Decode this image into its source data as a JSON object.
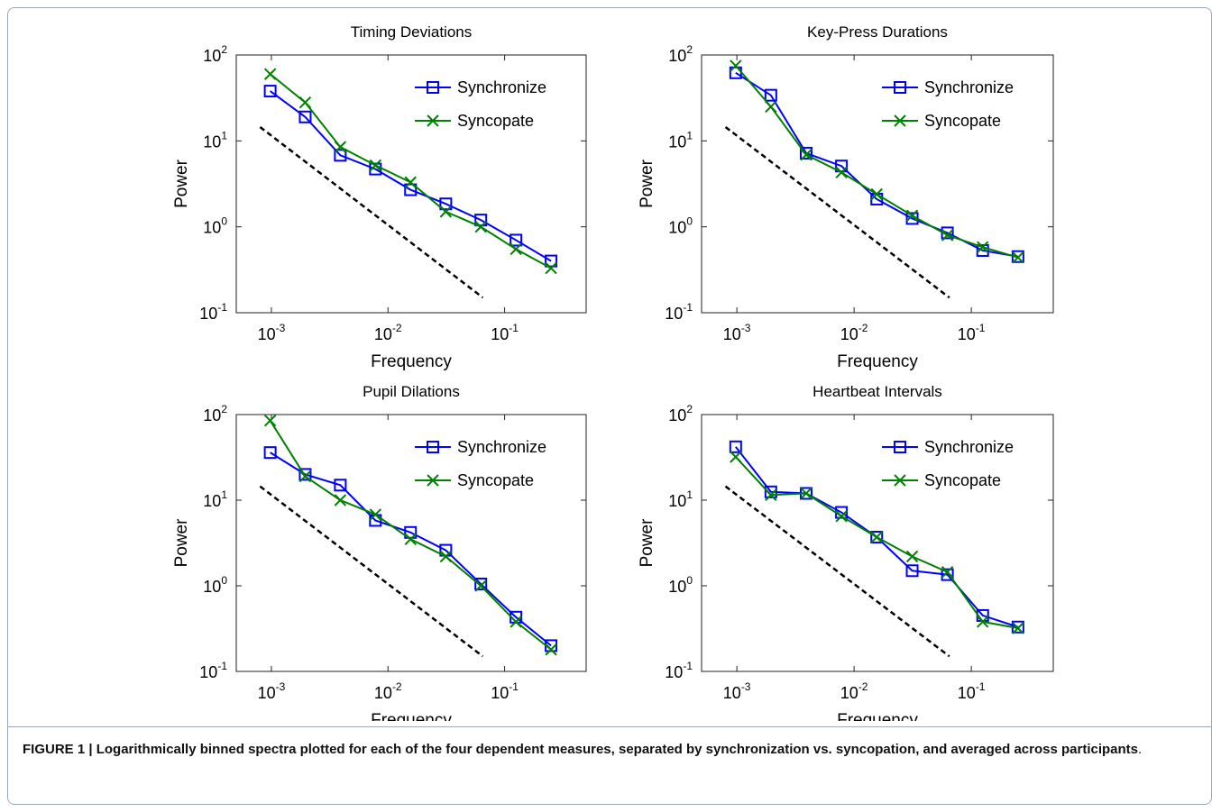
{
  "chart_data": [
    {
      "type": "line",
      "title": "Timing Deviations",
      "xlabel": "Frequency",
      "ylabel": "Power",
      "log_x": true,
      "log_y": true,
      "legend": "upper right",
      "x": [
        0.000977,
        0.00195,
        0.0039,
        0.0078,
        0.0156,
        0.0313,
        0.0625,
        0.125,
        0.25
      ],
      "series": [
        {
          "name": "Synchronize",
          "color": "#0000ff",
          "marker": "square",
          "values": [
            38,
            19,
            6.8,
            4.7,
            2.7,
            1.85,
            1.2,
            0.7,
            0.4
          ]
        },
        {
          "name": "Syncopate",
          "color": "#008000",
          "marker": "x",
          "values": [
            60,
            28,
            8.5,
            5.2,
            3.3,
            1.5,
            1.0,
            0.55,
            0.33
          ]
        }
      ],
      "reference_line": {
        "x": [
          0.0008,
          0.065
        ],
        "values": [
          14.5,
          0.15
        ],
        "color": "#000000",
        "dashed": true
      },
      "xlim": [
        0.0005,
        0.5
      ],
      "ylim": [
        0.1,
        100
      ],
      "xticks": [
        {
          "value": 0.001,
          "label": "10",
          "exponent": "-3"
        },
        {
          "value": 0.01,
          "label": "10",
          "exponent": "-2"
        },
        {
          "value": 0.1,
          "label": "10",
          "exponent": "-1"
        }
      ],
      "yticks": [
        {
          "value": 0.1,
          "label": "10",
          "exponent": "-1"
        },
        {
          "value": 1,
          "label": "10",
          "exponent": "0"
        },
        {
          "value": 10,
          "label": "10",
          "exponent": "1"
        },
        {
          "value": 100,
          "label": "10",
          "exponent": "2"
        }
      ]
    },
    {
      "type": "line",
      "title": "Key-Press Durations",
      "xlabel": "Frequency",
      "ylabel": "Power",
      "log_x": true,
      "log_y": true,
      "legend": "upper right",
      "x": [
        0.000977,
        0.00195,
        0.0039,
        0.0078,
        0.0156,
        0.0313,
        0.0625,
        0.125,
        0.25
      ],
      "series": [
        {
          "name": "Synchronize",
          "color": "#0000ff",
          "marker": "square",
          "values": [
            62,
            34,
            7.2,
            5.1,
            2.1,
            1.25,
            0.85,
            0.53,
            0.45
          ]
        },
        {
          "name": "Syncopate",
          "color": "#008000",
          "marker": "x",
          "values": [
            75,
            25,
            6.9,
            4.3,
            2.4,
            1.35,
            0.8,
            0.58,
            0.44
          ]
        }
      ],
      "reference_line": {
        "x": [
          0.0008,
          0.065
        ],
        "values": [
          14.5,
          0.15
        ],
        "color": "#000000",
        "dashed": true
      },
      "xlim": [
        0.0005,
        0.5
      ],
      "ylim": [
        0.1,
        100
      ],
      "xticks": [
        {
          "value": 0.001,
          "label": "10",
          "exponent": "-3"
        },
        {
          "value": 0.01,
          "label": "10",
          "exponent": "-2"
        },
        {
          "value": 0.1,
          "label": "10",
          "exponent": "-1"
        }
      ],
      "yticks": [
        {
          "value": 0.1,
          "label": "10",
          "exponent": "-1"
        },
        {
          "value": 1,
          "label": "10",
          "exponent": "0"
        },
        {
          "value": 10,
          "label": "10",
          "exponent": "1"
        },
        {
          "value": 100,
          "label": "10",
          "exponent": "2"
        }
      ]
    },
    {
      "type": "line",
      "title": "Pupil Dilations",
      "xlabel": "Frequency",
      "ylabel": "Power",
      "log_x": true,
      "log_y": true,
      "legend": "upper right",
      "x": [
        0.000977,
        0.00195,
        0.0039,
        0.0078,
        0.0156,
        0.0313,
        0.0625,
        0.125,
        0.25
      ],
      "series": [
        {
          "name": "Synchronize",
          "color": "#0000ff",
          "marker": "square",
          "values": [
            36,
            20,
            15,
            5.8,
            4.2,
            2.6,
            1.05,
            0.43,
            0.2
          ]
        },
        {
          "name": "Syncopate",
          "color": "#008000",
          "marker": "x",
          "values": [
            85,
            19,
            10,
            6.8,
            3.5,
            2.2,
            1.0,
            0.38,
            0.18
          ]
        }
      ],
      "reference_line": {
        "x": [
          0.0008,
          0.065
        ],
        "values": [
          14.5,
          0.15
        ],
        "color": "#000000",
        "dashed": true
      },
      "xlim": [
        0.0005,
        0.5
      ],
      "ylim": [
        0.1,
        100
      ],
      "xticks": [
        {
          "value": 0.001,
          "label": "10",
          "exponent": "-3"
        },
        {
          "value": 0.01,
          "label": "10",
          "exponent": "-2"
        },
        {
          "value": 0.1,
          "label": "10",
          "exponent": "-1"
        }
      ],
      "yticks": [
        {
          "value": 0.1,
          "label": "10",
          "exponent": "-1"
        },
        {
          "value": 1,
          "label": "10",
          "exponent": "0"
        },
        {
          "value": 10,
          "label": "10",
          "exponent": "1"
        },
        {
          "value": 100,
          "label": "10",
          "exponent": "2"
        }
      ]
    },
    {
      "type": "line",
      "title": "Heartbeat Intervals",
      "xlabel": "Frequency",
      "ylabel": "Power",
      "log_x": true,
      "log_y": true,
      "legend": "upper right",
      "x": [
        0.000977,
        0.00195,
        0.0039,
        0.0078,
        0.0156,
        0.0313,
        0.0625,
        0.125,
        0.25
      ],
      "series": [
        {
          "name": "Synchronize",
          "color": "#0000ff",
          "marker": "square",
          "values": [
            42,
            12.5,
            12,
            7.2,
            3.7,
            1.5,
            1.35,
            0.45,
            0.33
          ]
        },
        {
          "name": "Syncopate",
          "color": "#008000",
          "marker": "x",
          "values": [
            32,
            11.5,
            12,
            6.5,
            3.7,
            2.2,
            1.45,
            0.38,
            0.32
          ]
        }
      ],
      "reference_line": {
        "x": [
          0.0008,
          0.065
        ],
        "values": [
          14.5,
          0.15
        ],
        "color": "#000000",
        "dashed": true
      },
      "xlim": [
        0.0005,
        0.5
      ],
      "ylim": [
        0.1,
        100
      ],
      "xticks": [
        {
          "value": 0.001,
          "label": "10",
          "exponent": "-3"
        },
        {
          "value": 0.01,
          "label": "10",
          "exponent": "-2"
        },
        {
          "value": 0.1,
          "label": "10",
          "exponent": "-1"
        }
      ],
      "yticks": [
        {
          "value": 0.1,
          "label": "10",
          "exponent": "-1"
        },
        {
          "value": 1,
          "label": "10",
          "exponent": "0"
        },
        {
          "value": 10,
          "label": "10",
          "exponent": "1"
        },
        {
          "value": 100,
          "label": "10",
          "exponent": "2"
        }
      ]
    }
  ],
  "caption": {
    "lead": "FIGURE 1 | Logarithmically binned spectra plotted for each of the four dependent measures, separated by synchronization vs. syncopation, and averaged across participants",
    "end": "."
  }
}
